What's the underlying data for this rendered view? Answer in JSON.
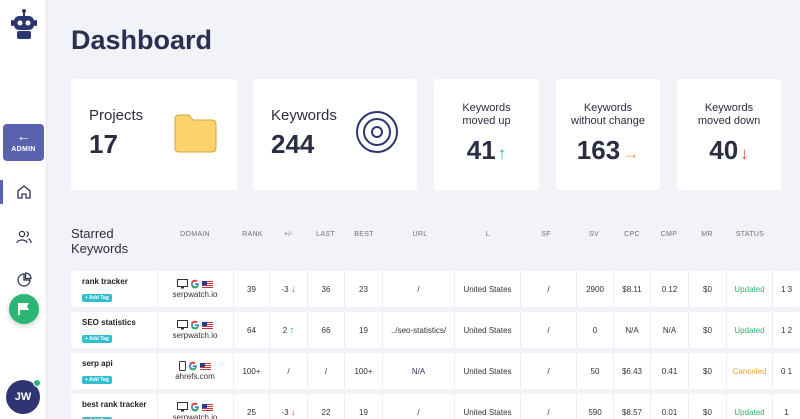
{
  "page": {
    "title": "Dashboard"
  },
  "sidebar": {
    "admin_label": "ADMIN",
    "admin_icon": "arrow-left-icon",
    "nav": [
      "home-icon",
      "users-icon",
      "pie-chart-icon"
    ],
    "fab_icon": "flag-icon",
    "avatar_initials": "JW",
    "colors": {
      "accent": "#5b62ad",
      "fab": "#2bb673"
    }
  },
  "cards": {
    "projects": {
      "label": "Projects",
      "value": "17",
      "icon": "folder-icon"
    },
    "keywords": {
      "label": "Keywords",
      "value": "244",
      "icon": "target-icon"
    },
    "moved_up": {
      "label_line1": "Keywords",
      "label_line2": "moved up",
      "value": "41",
      "trend": "↑"
    },
    "no_change": {
      "label_line1": "Keywords",
      "label_line2": "without change",
      "value": "163",
      "trend": "→"
    },
    "moved_down": {
      "label_line1": "Keywords",
      "label_line2": "moved down",
      "value": "40",
      "trend": "↓"
    }
  },
  "starred": {
    "title_line1": "Starred",
    "title_line2": "Keywords",
    "columns": [
      "DOMAIN",
      "RANK",
      "+/-",
      "LAST",
      "BEST",
      "URL",
      "L",
      "SF",
      "SV",
      "CPC",
      "CMP",
      "MR",
      "STATUS"
    ],
    "add_tag_label": "+ Add Tag",
    "rows": [
      {
        "keyword": "rank tracker",
        "device": "desktop",
        "domain": "serpwatch.io",
        "rank": "39",
        "change": "-3",
        "change_dir": "↓",
        "last": "36",
        "best": "23",
        "url": "/",
        "location": "United States",
        "sf": "/",
        "sv": "2900",
        "cpc": "$8.11",
        "cmp": "0.12",
        "mr": "$0",
        "status": "Updated",
        "extra": "1 3"
      },
      {
        "keyword": "SEO statistics",
        "device": "desktop",
        "domain": "serpwatch.io",
        "rank": "64",
        "change": "2",
        "change_dir": "↑",
        "last": "66",
        "best": "19",
        "url": "../seo-statistics/",
        "location": "United States",
        "sf": "/",
        "sv": "0",
        "cpc": "N/A",
        "cmp": "N/A",
        "mr": "$0",
        "status": "Updated",
        "extra": "1 2"
      },
      {
        "keyword": "serp api",
        "device": "mobile",
        "domain": "ahrefs.com",
        "rank": "100+",
        "change": "/",
        "change_dir": "",
        "last": "/",
        "best": "100+",
        "url": "N/A",
        "location": "United States",
        "sf": "/",
        "sv": "50",
        "cpc": "$6.43",
        "cmp": "0.41",
        "mr": "$0",
        "status": "Canceled",
        "extra": "0 1"
      },
      {
        "keyword": "best rank tracker",
        "device": "desktop",
        "domain": "serpwatch.io",
        "rank": "25",
        "change": "-3",
        "change_dir": "↓",
        "last": "22",
        "best": "19",
        "url": "/",
        "location": "United States",
        "sf": "/",
        "sv": "590",
        "cpc": "$8.57",
        "cmp": "0.01",
        "mr": "$0",
        "status": "Updated",
        "extra": "1"
      }
    ]
  }
}
